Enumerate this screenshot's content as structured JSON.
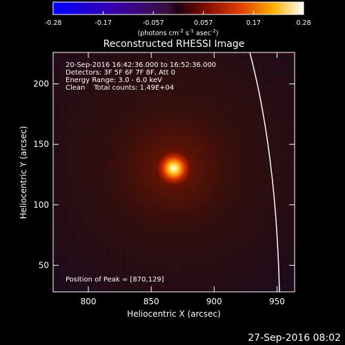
{
  "colorbar": {
    "ticks": [
      "-0.28",
      "-0.17",
      "-0.057",
      "0.057",
      "0.17",
      "0.28"
    ],
    "units_prefix": "(photons cm",
    "units_sup1": "-2",
    "units_mid1": " s",
    "units_sup2": "-1",
    "units_mid2": " asec",
    "units_sup3": "-2",
    "units_suffix": ")"
  },
  "image": {
    "title": "Reconstructed RHESSI Image",
    "annotations": [
      "20-Sep-2016 16:42:36.000 to 16:52:36.000",
      "Detectors: 3F 5F 6F 7F 8F, Att 0",
      "Energy Range: 3.0 - 6.0 keV",
      "Clean    Total counts: 1.49E+04"
    ],
    "peak_text": "Position of Peak = [870,129]",
    "peak_position": [
      870,
      129
    ],
    "x_axis_label": "Heliocentric X (arcsec)",
    "y_axis_label": "Heliocentric Y (arcsec)",
    "x_ticks": [
      "800",
      "850",
      "900",
      "950"
    ],
    "y_ticks": [
      "50",
      "100",
      "150",
      "200"
    ],
    "x_range": [
      772,
      964
    ],
    "y_range": [
      28,
      226
    ]
  },
  "footer": {
    "timestamp": "27-Sep-2016 08:02"
  }
}
